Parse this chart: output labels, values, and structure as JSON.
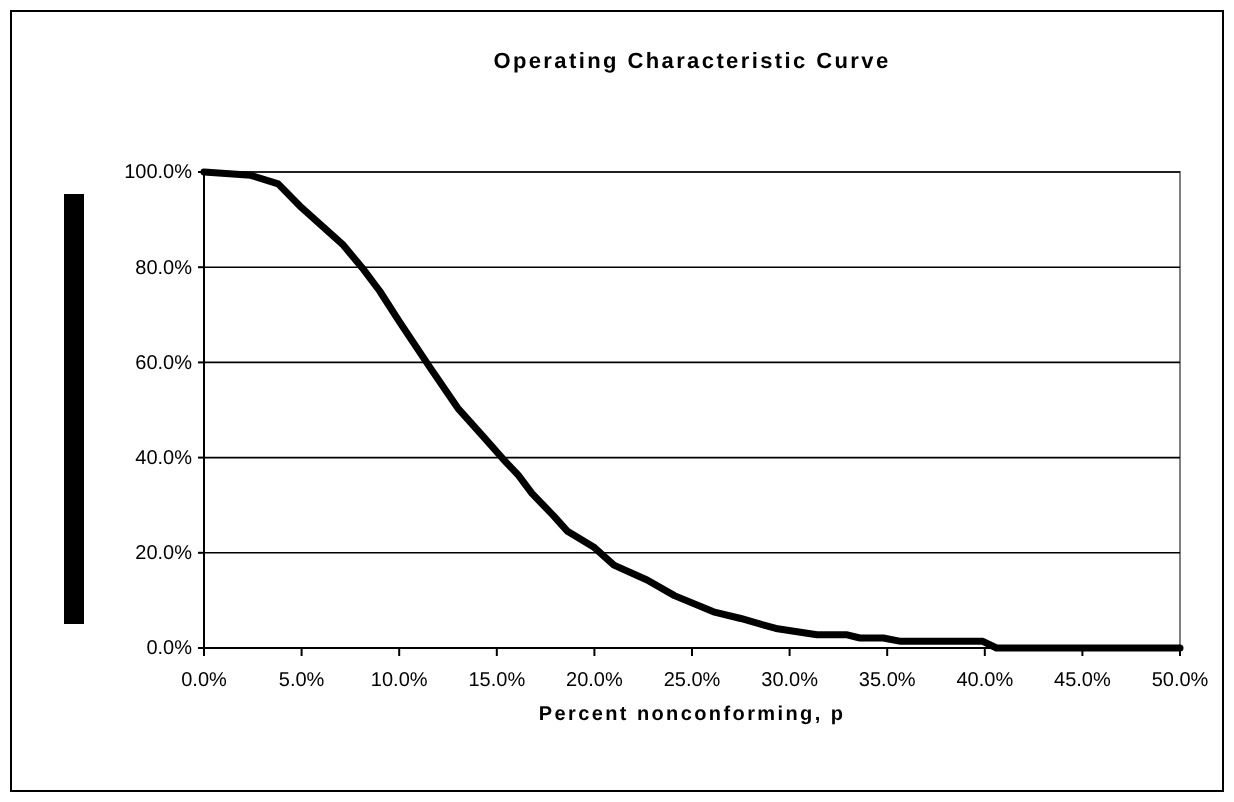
{
  "chart_data": {
    "type": "line",
    "title": "Operating Characteristic Curve",
    "xlabel": "Percent nonconforming, p",
    "series": [
      {
        "color": "#000000",
        "x": [
          0,
          2.4,
          3.8,
          5,
          7.1,
          8.1,
          9,
          10,
          11.6,
          13,
          14.4,
          15.3,
          16.1,
          16.8,
          17.9,
          18.6,
          20,
          21,
          22.7,
          24.1,
          26.1,
          27.5,
          29.3,
          31.4,
          32.9,
          33.6,
          34.8,
          35.7,
          39.9,
          40.6,
          50
        ],
        "values": [
          100,
          99.3,
          97.5,
          92.5,
          84.8,
          79.9,
          75,
          68.6,
          58.8,
          50.4,
          44,
          39.8,
          36.3,
          32.5,
          27.8,
          24.6,
          21.1,
          17.4,
          14.3,
          11,
          7.6,
          6.2,
          4.1,
          2.8,
          2.8,
          2.1,
          2.1,
          1.4,
          1.4,
          0,
          0
        ]
      }
    ],
    "xlim": [
      0,
      50
    ],
    "ylim": [
      0,
      100
    ],
    "xticks": [
      {
        "value": 0,
        "label": "0.0%"
      },
      {
        "value": 5,
        "label": "5.0%"
      },
      {
        "value": 10,
        "label": "10.0%"
      },
      {
        "value": 15,
        "label": "15.0%"
      },
      {
        "value": 20,
        "label": "20.0%"
      },
      {
        "value": 25,
        "label": "25.0%"
      },
      {
        "value": 30,
        "label": "30.0%"
      },
      {
        "value": 35,
        "label": "35.0%"
      },
      {
        "value": 40,
        "label": "40.0%"
      },
      {
        "value": 45,
        "label": "45.0%"
      },
      {
        "value": 50,
        "label": "50.0%"
      }
    ],
    "yticks": [
      {
        "value": 0,
        "label": "0.0%"
      },
      {
        "value": 20,
        "label": "20.0%"
      },
      {
        "value": 40,
        "label": "40.0%"
      },
      {
        "value": 60,
        "label": "60.0%"
      },
      {
        "value": 80,
        "label": "80.0%"
      },
      {
        "value": 100,
        "label": "100.0%"
      }
    ],
    "grid": "y",
    "marker": "none",
    "line_style": "solid"
  }
}
